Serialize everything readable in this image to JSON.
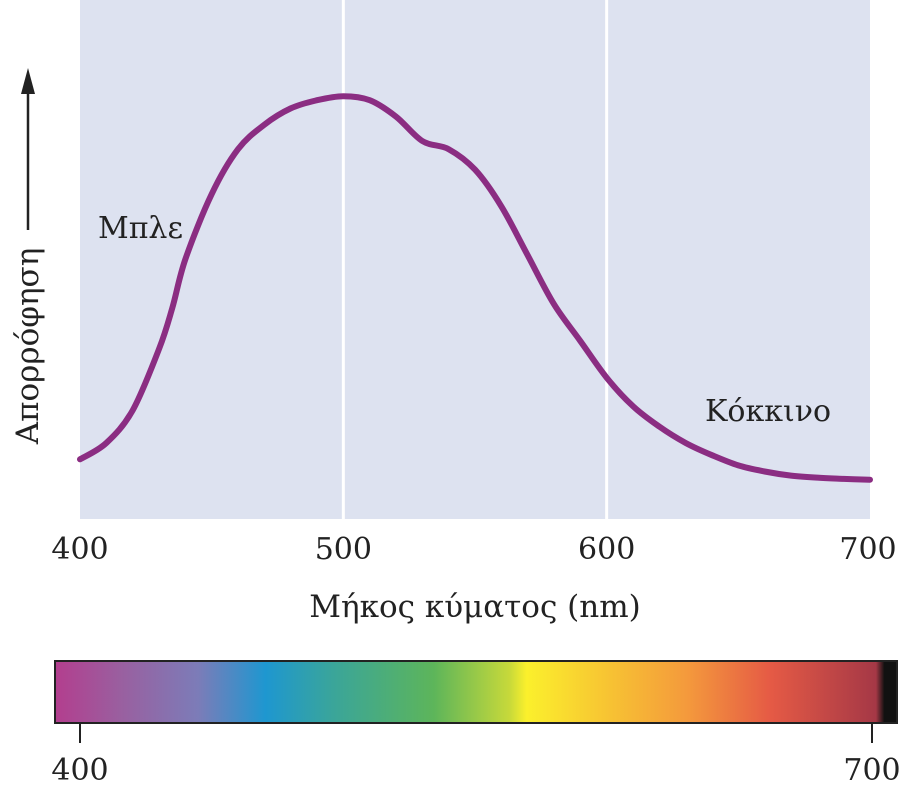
{
  "chart_data": {
    "type": "line",
    "title": "",
    "xlabel": "Μήκος κύματος (nm)",
    "ylabel": "Απορρόφηση",
    "xlim": [
      400,
      700
    ],
    "ylim": [
      0,
      1
    ],
    "x_ticks": [
      "400",
      "500",
      "600",
      "700"
    ],
    "grid": "vertical lines at 500 and 600",
    "series": [
      {
        "name": "Απορρόφηση",
        "color": "#8b2d82",
        "x": [
          400,
          410,
          420,
          430,
          435,
          440,
          450,
          460,
          470,
          480,
          490,
          500,
          510,
          520,
          530,
          540,
          550,
          560,
          570,
          580,
          590,
          600,
          610,
          620,
          630,
          640,
          650,
          660,
          670,
          680,
          690,
          700
        ],
        "y": [
          0.09,
          0.13,
          0.21,
          0.36,
          0.46,
          0.58,
          0.74,
          0.85,
          0.91,
          0.95,
          0.97,
          0.98,
          0.97,
          0.93,
          0.87,
          0.85,
          0.8,
          0.71,
          0.59,
          0.47,
          0.38,
          0.29,
          0.22,
          0.17,
          0.13,
          0.1,
          0.075,
          0.06,
          0.05,
          0.045,
          0.042,
          0.04
        ]
      }
    ],
    "annotations": [
      {
        "text": "Μπλε",
        "x": 428,
        "y": 0.61
      },
      {
        "text": "Κόκκινο",
        "x": 652,
        "y": 0.25
      }
    ],
    "spectrum_bar": {
      "tick_labels": [
        "400",
        "700"
      ],
      "colors": [
        "#b33e8e",
        "#9960a0",
        "#7c7cb8",
        "#1e97d0",
        "#3aa59a",
        "#5db55a",
        "#c7d93a",
        "#fbf02c",
        "#f7c233",
        "#f49a3c",
        "#e55a45",
        "#a53846",
        "#111111"
      ]
    },
    "colors": {
      "plot_background": "#dde2f0",
      "grid": "#ffffff",
      "curve": "#8b2d82",
      "text": "#222222"
    }
  }
}
